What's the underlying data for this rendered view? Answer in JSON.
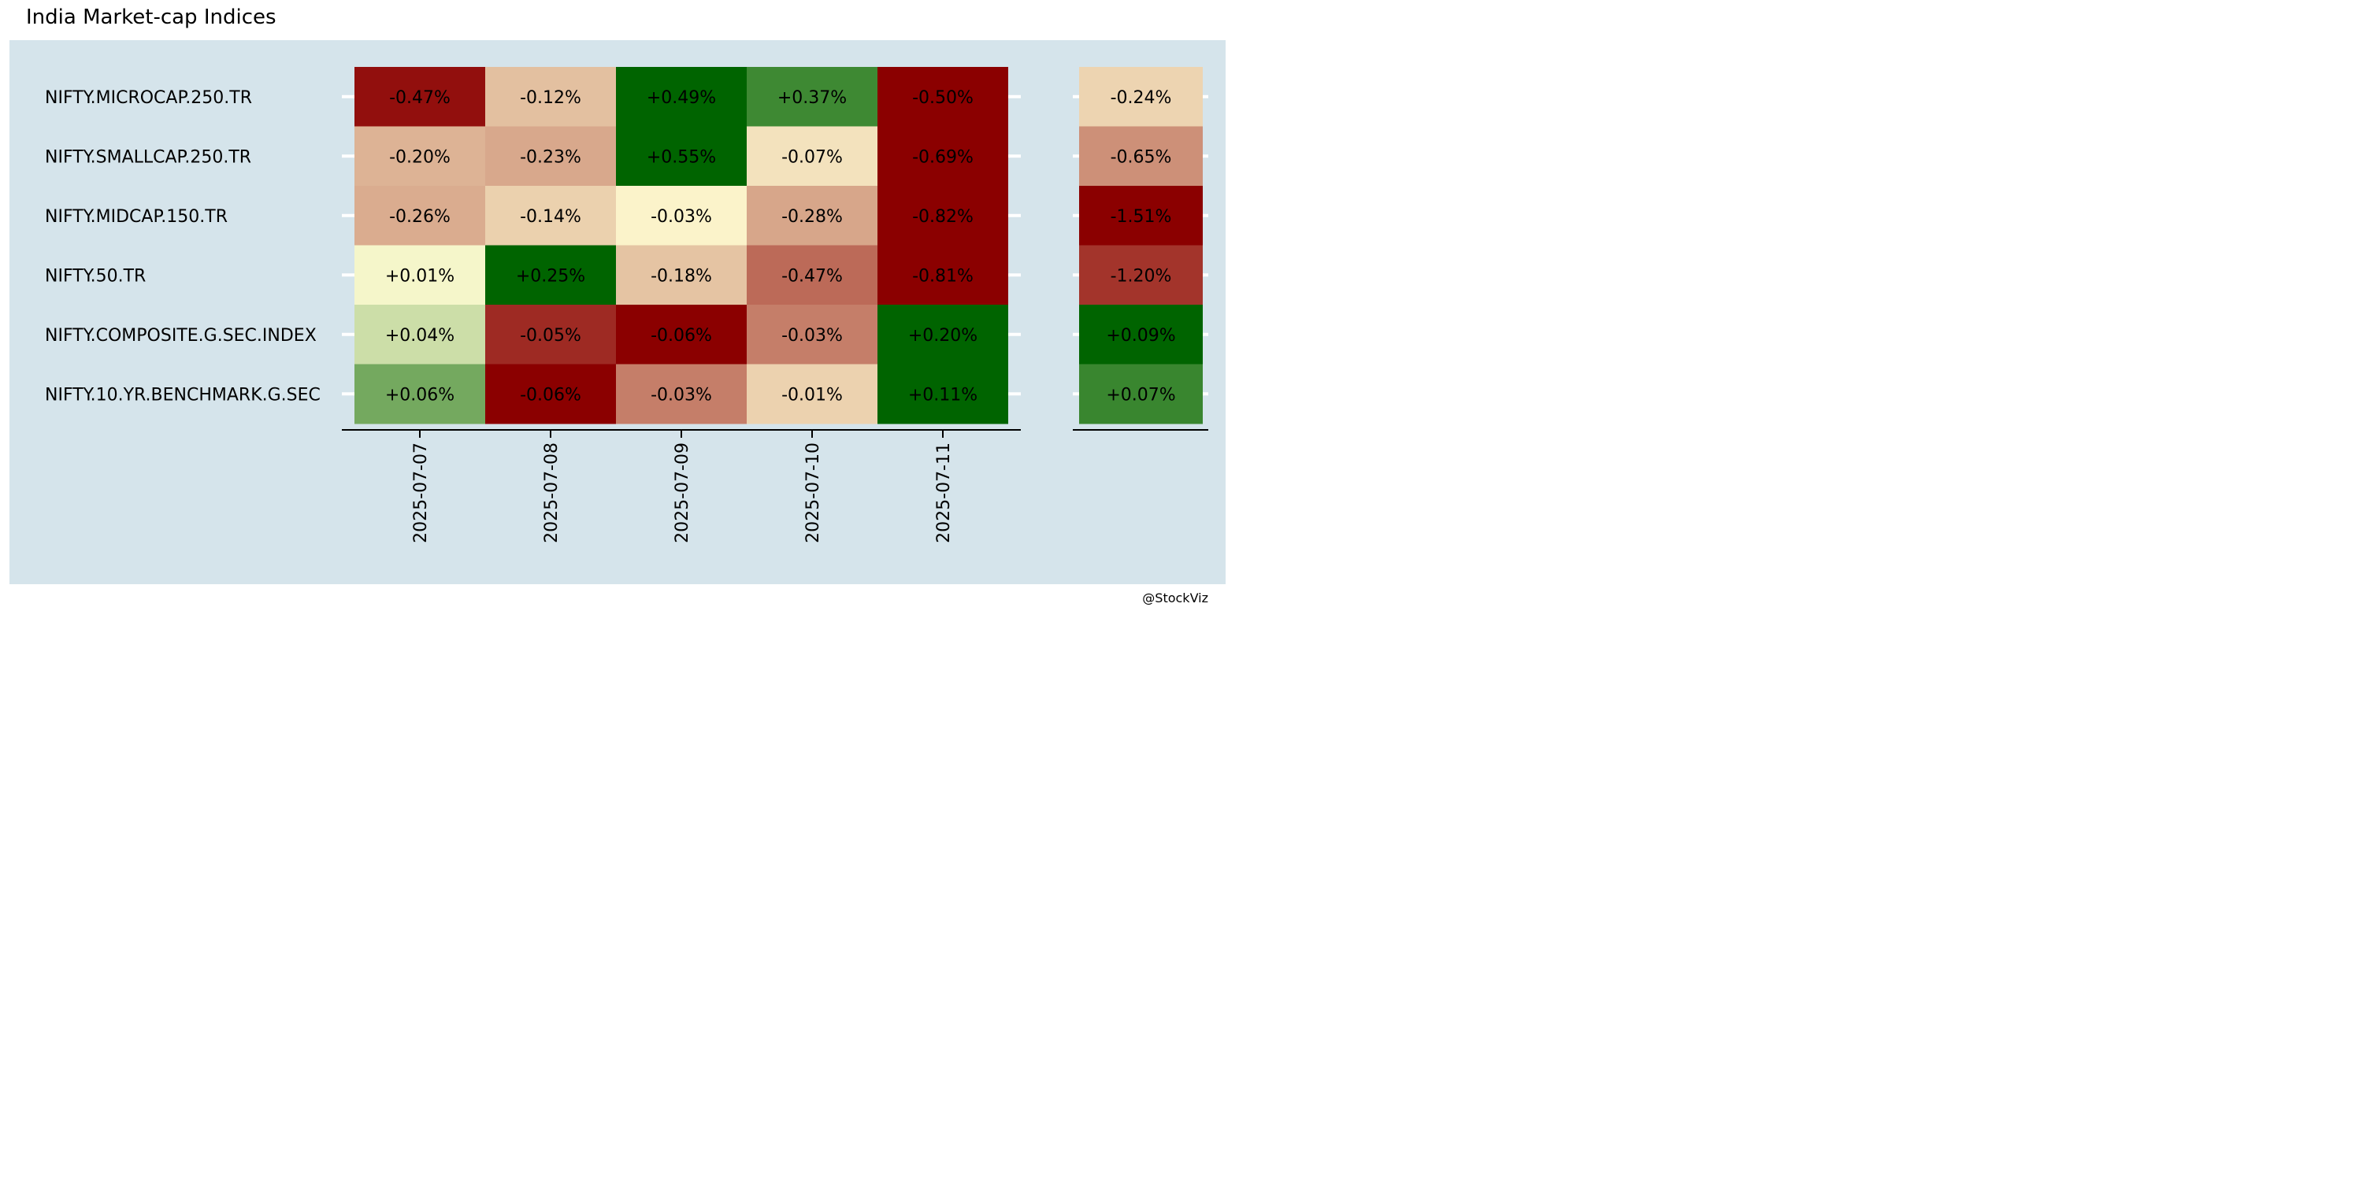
{
  "title": "India Market-cap Indices",
  "credit": "@StockViz",
  "colors": {
    "panel_background": "#d5e4eb",
    "negative_max": "#8b0000",
    "neutral": "#fffcd2",
    "positive_max": "#006400"
  },
  "chart_data": [
    {
      "type": "heatmap",
      "title": "",
      "rows": [
        "NIFTY.MICROCAP.250.TR",
        "NIFTY.SMALLCAP.250.TR",
        "NIFTY.MIDCAP.150.TR",
        "NIFTY.50.TR",
        "NIFTY.COMPOSITE.G.SEC.INDEX",
        "NIFTY.10.YR.BENCHMARK.G.SEC"
      ],
      "columns": [
        "2025-07-07",
        "2025-07-08",
        "2025-07-09",
        "2025-07-10",
        "2025-07-11"
      ],
      "values": [
        [
          -0.47,
          -0.12,
          0.49,
          0.37,
          -0.5
        ],
        [
          -0.2,
          -0.23,
          0.55,
          -0.07,
          -0.69
        ],
        [
          -0.26,
          -0.14,
          -0.03,
          -0.28,
          -0.82
        ],
        [
          0.01,
          0.25,
          -0.18,
          -0.47,
          -0.81
        ],
        [
          0.04,
          -0.05,
          -0.06,
          -0.03,
          0.2
        ],
        [
          0.06,
          -0.06,
          -0.03,
          -0.01,
          0.11
        ]
      ],
      "labels": [
        [
          "-0.47%",
          "-0.12%",
          "+0.49%",
          "+0.37%",
          "-0.50%"
        ],
        [
          "-0.20%",
          "-0.23%",
          "+0.55%",
          "-0.07%",
          "-0.69%"
        ],
        [
          "-0.26%",
          "-0.14%",
          "-0.03%",
          "-0.28%",
          "-0.82%"
        ],
        [
          "+0.01%",
          "+0.25%",
          "-0.18%",
          "-0.47%",
          "-0.81%"
        ],
        [
          "+0.04%",
          "-0.05%",
          "-0.06%",
          "-0.03%",
          "+0.20%"
        ],
        [
          "+0.06%",
          "-0.06%",
          "-0.03%",
          "-0.01%",
          "+0.11%"
        ]
      ],
      "color_scale_per_row": true,
      "grid": false
    },
    {
      "type": "heatmap",
      "title": "",
      "rows": [
        "NIFTY.MICROCAP.250.TR",
        "NIFTY.SMALLCAP.250.TR",
        "NIFTY.MIDCAP.150.TR",
        "NIFTY.50.TR",
        "NIFTY.COMPOSITE.G.SEC.INDEX",
        "NIFTY.10.YR.BENCHMARK.G.SEC"
      ],
      "columns": [],
      "values": [
        [
          -0.24
        ],
        [
          -0.65
        ],
        [
          -1.51
        ],
        [
          -1.2
        ],
        [
          0.09
        ],
        [
          0.07
        ]
      ],
      "labels": [
        [
          "-0.24%"
        ],
        [
          "-0.65%"
        ],
        [
          "-1.51%"
        ],
        [
          "-1.20%"
        ],
        [
          "+0.09%"
        ],
        [
          "+0.07%"
        ]
      ],
      "color_scale_per_column": true,
      "grid": false
    }
  ]
}
